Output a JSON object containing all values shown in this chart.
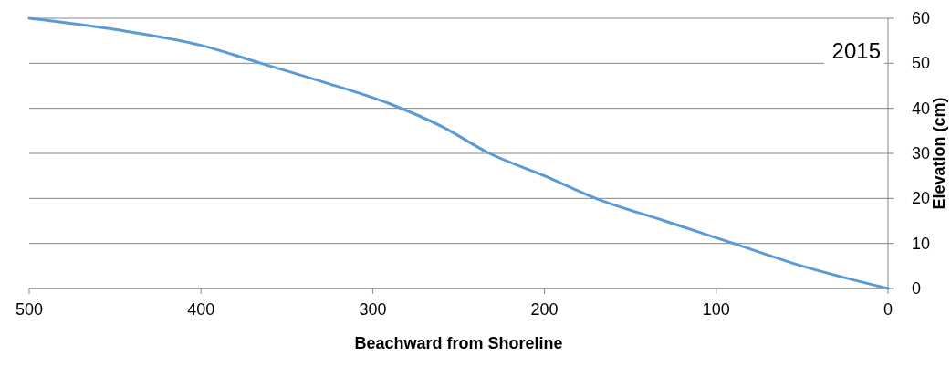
{
  "chart_data": {
    "type": "line",
    "xlabel": "Beachward from Shoreline",
    "ylabel": "Elevation (cm)",
    "annotations": [
      "2015"
    ],
    "x": [
      500,
      450,
      400,
      365,
      330,
      290,
      260,
      232,
      200,
      170,
      130,
      90,
      50,
      0
    ],
    "series": [
      {
        "color": "#5b9bd5",
        "values": [
          60,
          57.5,
          54,
          50,
          46,
          41,
          36,
          30,
          25,
          20,
          15,
          10,
          5,
          0
        ]
      }
    ],
    "xlim": [
      500,
      0
    ],
    "xticks": [
      500,
      400,
      300,
      200,
      100,
      0
    ],
    "ylim": [
      0,
      60
    ],
    "yticks": [
      0,
      10,
      20,
      30,
      40,
      50,
      60
    ],
    "grid": "y",
    "marker": "none",
    "line_style": "solid"
  }
}
